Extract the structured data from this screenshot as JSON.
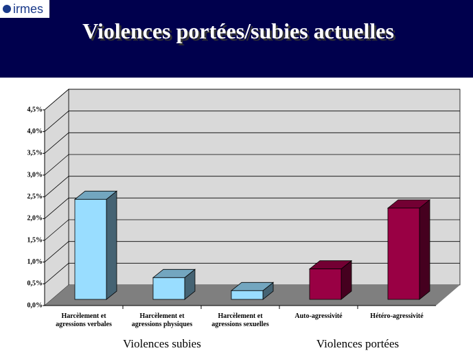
{
  "header": {
    "logo": "irmes"
  },
  "chart_data": {
    "type": "bar3d",
    "title": "Violences portées/subies actuelles",
    "categories": [
      [
        "Harcèlement et",
        "agressions verbales"
      ],
      [
        "Harcèlement et",
        "agressions physiques"
      ],
      [
        "Harcèlement et",
        "agressions sexuelles"
      ],
      [
        "Auto-agressivité"
      ],
      [
        "Hétéro-agressivité"
      ]
    ],
    "values": [
      2.3,
      0.5,
      0.2,
      0.7,
      2.1
    ],
    "colors": [
      "#99ddff",
      "#99ddff",
      "#99ddff",
      "#990044",
      "#990044"
    ],
    "groups": [
      "Violences subies",
      "Violences portées"
    ],
    "ylim": [
      0,
      4.5
    ],
    "yticks": [
      {
        "value": 0,
        "label": "0,0%"
      },
      {
        "value": 0.5,
        "label": "0,5%"
      },
      {
        "value": 1,
        "label": "1,0%"
      },
      {
        "value": 1.5,
        "label": "1,5%"
      },
      {
        "value": 2,
        "label": "2,0%"
      },
      {
        "value": 2.5,
        "label": "2,5%"
      },
      {
        "value": 3,
        "label": "3,0%"
      },
      {
        "value": 3.5,
        "label": "3,5%"
      },
      {
        "value": 4,
        "label": "4,0%"
      },
      {
        "value": 4.5,
        "label": "4,5%"
      }
    ],
    "grid": true
  }
}
